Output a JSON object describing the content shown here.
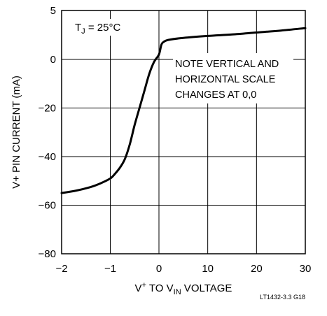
{
  "chart_data": {
    "type": "line",
    "title": "",
    "xlabel": {
      "prefix": "V",
      "sup": "+",
      "middle": " TO V",
      "sub": "IN",
      "suffix": " VOLTAGE"
    },
    "ylabel": "V+ PIN CURRENT (mA)",
    "x_break": 0,
    "x_negative_range": [
      -2,
      0
    ],
    "x_positive_range": [
      0,
      30
    ],
    "y_break": 0,
    "y_positive_range": [
      0,
      5
    ],
    "y_negative_range": [
      -80,
      0
    ],
    "x_ticks": [
      "−2",
      "−1",
      "0",
      "10",
      "20",
      "30"
    ],
    "x_tick_values": [
      -2,
      -1,
      0,
      10,
      20,
      30
    ],
    "y_ticks": [
      "5",
      "0",
      "−20",
      "−40",
      "−60",
      "−80"
    ],
    "y_tick_values": [
      5,
      0,
      -20,
      -40,
      -60,
      -80
    ],
    "grid": true,
    "annotation_condition": {
      "prefix": "T",
      "sub": "J",
      "suffix": " = 25°C"
    },
    "annotation_note": [
      "NOTE VERTICAL AND",
      "HORIZONTAL SCALE",
      "CHANGES AT 0,0"
    ],
    "series": [
      {
        "x": [
          -2,
          -1.7,
          -1.4,
          -1.2,
          -1.0,
          -0.9,
          -0.8,
          -0.7,
          -0.6,
          -0.5,
          -0.4,
          -0.3,
          -0.2,
          -0.1,
          0,
          0.5,
          1,
          2,
          5,
          10,
          15,
          20,
          25,
          30
        ],
        "y": [
          -55,
          -54,
          -52.5,
          -51,
          -49,
          -47,
          -44.5,
          -41,
          -35,
          -27,
          -20,
          -13,
          -6,
          -1,
          0.5,
          1.5,
          1.8,
          2.0,
          2.2,
          2.4,
          2.55,
          2.75,
          2.95,
          3.2
        ]
      }
    ]
  },
  "footer": "LT1432-3.3 G18"
}
